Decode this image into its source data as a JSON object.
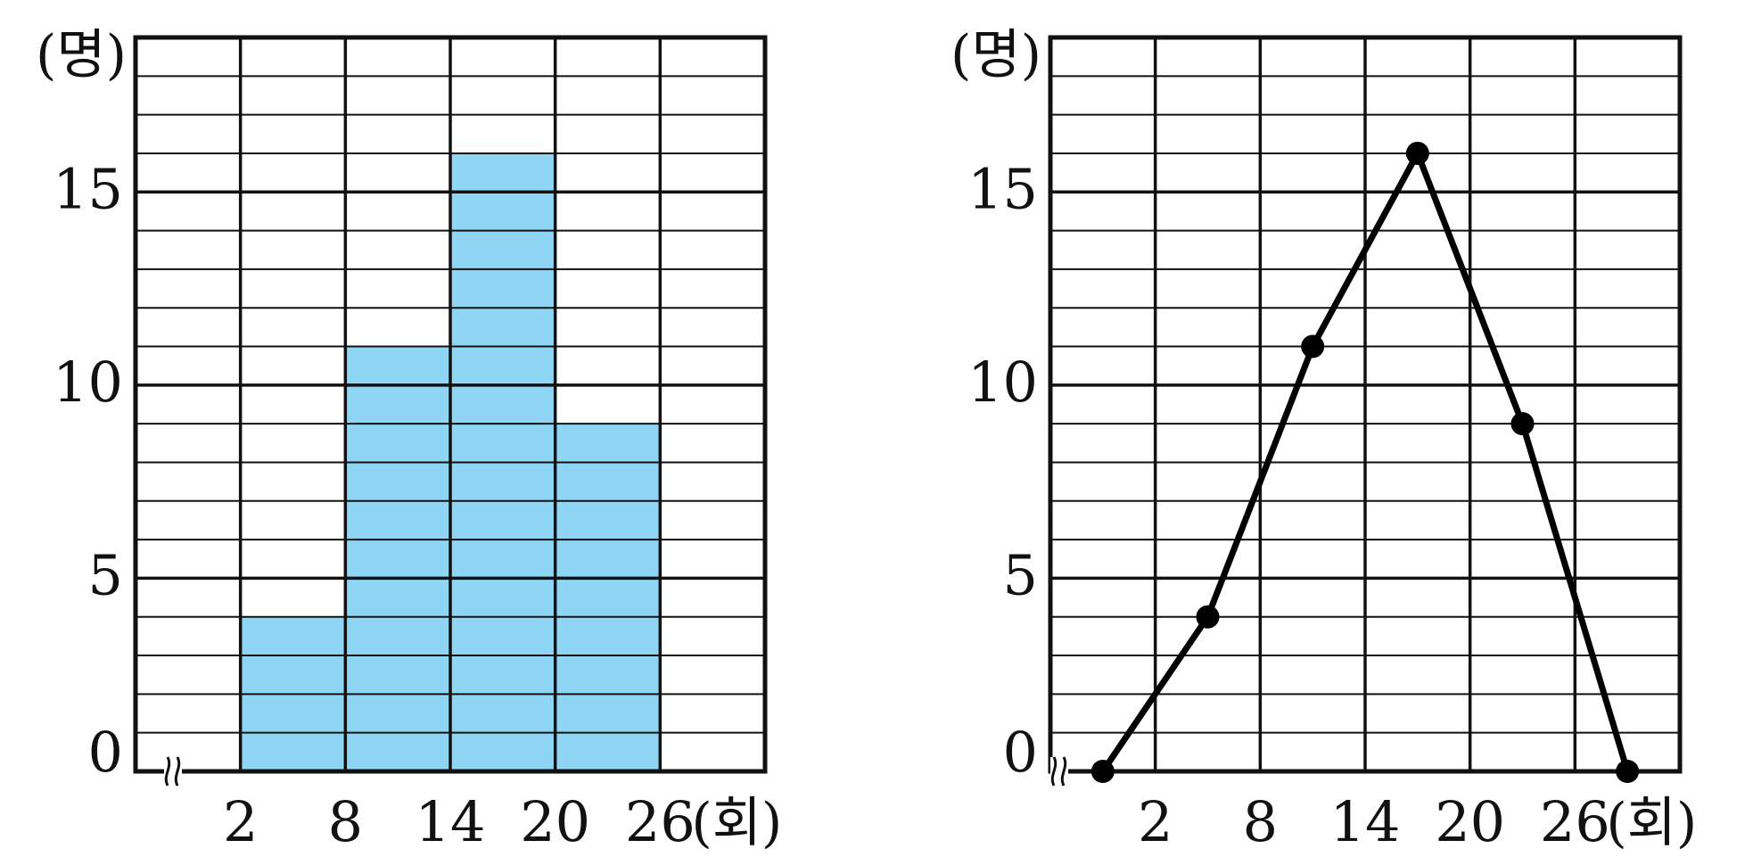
{
  "chart_data": [
    {
      "type": "bar",
      "subtype": "histogram",
      "bin_edges": [
        2,
        8,
        14,
        20,
        26
      ],
      "categories": [
        "2~8",
        "8~14",
        "14~20",
        "20~26"
      ],
      "values": [
        4,
        11,
        16,
        9
      ],
      "ylim": [
        0,
        19
      ],
      "yticks": [
        "0",
        "5",
        "10",
        "15"
      ],
      "xticks": [
        "2",
        "8",
        "14",
        "20",
        "26"
      ],
      "xunit": "(회)",
      "yunit": "(명)",
      "grid": true,
      "bar_color": "#8fd6f5"
    },
    {
      "type": "line",
      "subtype": "frequency-polygon",
      "x": [
        -1,
        5,
        11,
        17,
        23,
        29
      ],
      "values": [
        0,
        4,
        11,
        16,
        9,
        0
      ],
      "ylim": [
        0,
        19
      ],
      "yticks": [
        "0",
        "5",
        "10",
        "15"
      ],
      "xticks": [
        "2",
        "8",
        "14",
        "20",
        "26"
      ],
      "xunit": "(회)",
      "yunit": "(명)",
      "grid": true,
      "line_color": "#000000"
    }
  ]
}
